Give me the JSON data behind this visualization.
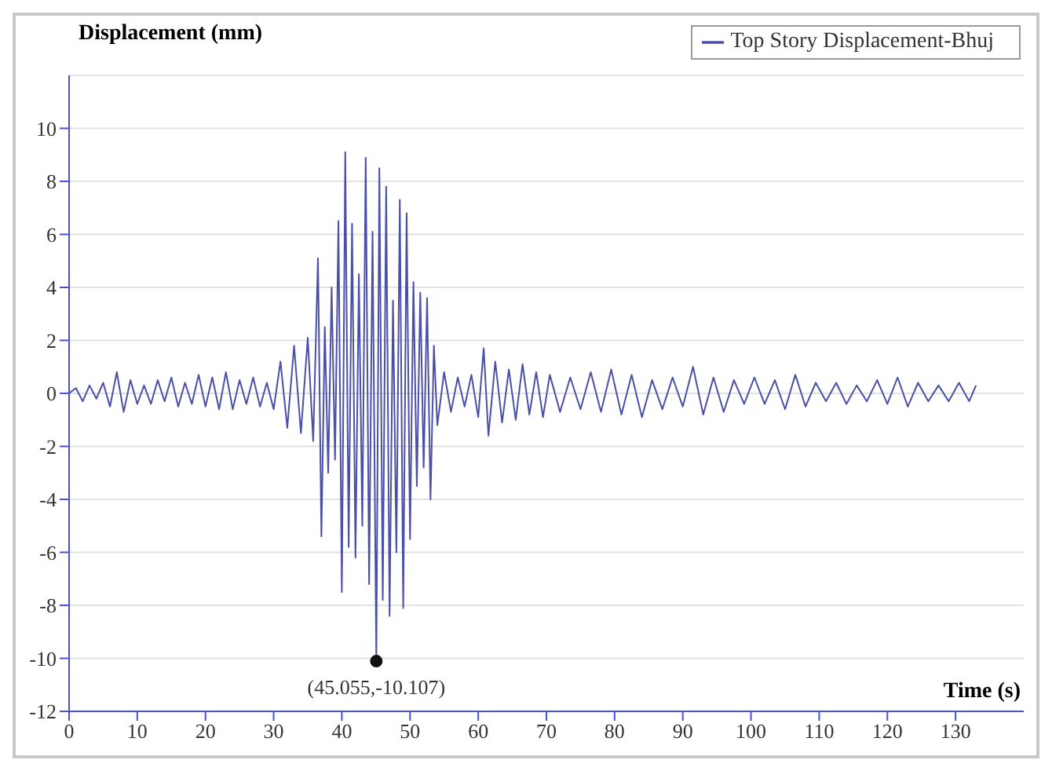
{
  "chart_data": {
    "type": "line",
    "xlabel": "Time (s)",
    "ylabel": "Displacement (mm)",
    "x": [
      0,
      1,
      2,
      3,
      4,
      5,
      6,
      7,
      8,
      9,
      10,
      11,
      12,
      13,
      14,
      15,
      16,
      17,
      18,
      19,
      20,
      21,
      22,
      23,
      24,
      25,
      26,
      27,
      28,
      29,
      30,
      31,
      32,
      33,
      34,
      35,
      35.8,
      36.5,
      37,
      37.5,
      38,
      38.5,
      39,
      39.5,
      40,
      40.5,
      41,
      41.5,
      42,
      42.5,
      43,
      43.5,
      44,
      44.5,
      45.055,
      45.5,
      46,
      46.5,
      47,
      47.5,
      48,
      48.5,
      49,
      49.5,
      50,
      50.5,
      51,
      51.5,
      52,
      52.5,
      53,
      53.5,
      54,
      55,
      56,
      57,
      58,
      59,
      60,
      60.8,
      61.5,
      62.5,
      63.5,
      64.5,
      65.5,
      66.5,
      67.5,
      68.5,
      69.5,
      70.5,
      72,
      73.5,
      75,
      76.5,
      78,
      79.5,
      81,
      82.5,
      84,
      85.5,
      87,
      88.5,
      90,
      91.5,
      93,
      94.5,
      96,
      97.5,
      99,
      100.5,
      102,
      103.5,
      105,
      106.5,
      108,
      109.5,
      111,
      112.5,
      114,
      115.5,
      117,
      118.5,
      120,
      121.5,
      123,
      124.5,
      126,
      127.5,
      129,
      130.5,
      132,
      133
    ],
    "series": [
      {
        "name": "Top Story Displacement-Bhuj",
        "color": "#4a4fa8",
        "values": [
          0,
          0.2,
          -0.3,
          0.3,
          -0.2,
          0.4,
          -0.5,
          0.8,
          -0.7,
          0.5,
          -0.4,
          0.3,
          -0.4,
          0.5,
          -0.3,
          0.6,
          -0.5,
          0.4,
          -0.4,
          0.7,
          -0.5,
          0.6,
          -0.6,
          0.8,
          -0.6,
          0.5,
          -0.4,
          0.6,
          -0.5,
          0.4,
          -0.6,
          1.2,
          -1.3,
          1.8,
          -1.5,
          2.1,
          -1.8,
          5.1,
          -5.4,
          2.5,
          -3,
          4,
          -2.5,
          6.5,
          -7.5,
          9.1,
          -5.8,
          6.4,
          -6.2,
          4.5,
          -5,
          8.9,
          -7.2,
          6.1,
          -10.107,
          8.5,
          -7.8,
          7.8,
          -8.4,
          3.5,
          -6,
          7.3,
          -8.1,
          6.8,
          -5.5,
          4.2,
          -3.5,
          3.8,
          -2.8,
          3.6,
          -4,
          1.8,
          -1.2,
          0.8,
          -0.7,
          0.6,
          -0.5,
          0.7,
          -0.9,
          1.7,
          -1.6,
          1.2,
          -1.1,
          0.9,
          -1,
          1.1,
          -0.8,
          0.8,
          -0.9,
          0.7,
          -0.7,
          0.6,
          -0.6,
          0.8,
          -0.7,
          0.9,
          -0.8,
          0.7,
          -0.9,
          0.5,
          -0.6,
          0.6,
          -0.5,
          1,
          -0.8,
          0.6,
          -0.7,
          0.5,
          -0.4,
          0.6,
          -0.4,
          0.5,
          -0.6,
          0.7,
          -0.5,
          0.4,
          -0.3,
          0.4,
          -0.4,
          0.3,
          -0.3,
          0.5,
          -0.4,
          0.6,
          -0.5,
          0.4,
          -0.3,
          0.3,
          -0.3,
          0.4,
          -0.3,
          0.3
        ]
      }
    ],
    "xlim": [
      0,
      140
    ],
    "xticks": [
      0,
      10,
      20,
      30,
      40,
      50,
      60,
      70,
      80,
      90,
      100,
      110,
      120,
      130
    ],
    "ylim": [
      -12,
      12
    ],
    "yticks": [
      -12,
      -10,
      -8,
      -6,
      -4,
      -2,
      0,
      2,
      4,
      6,
      8,
      10
    ],
    "grid": "y",
    "legend": "top right",
    "marker": "none",
    "line_style": "solid",
    "annotations": [
      {
        "text": "(45.055,-10.107)",
        "x": 45.055,
        "y": -10.107
      }
    ]
  }
}
